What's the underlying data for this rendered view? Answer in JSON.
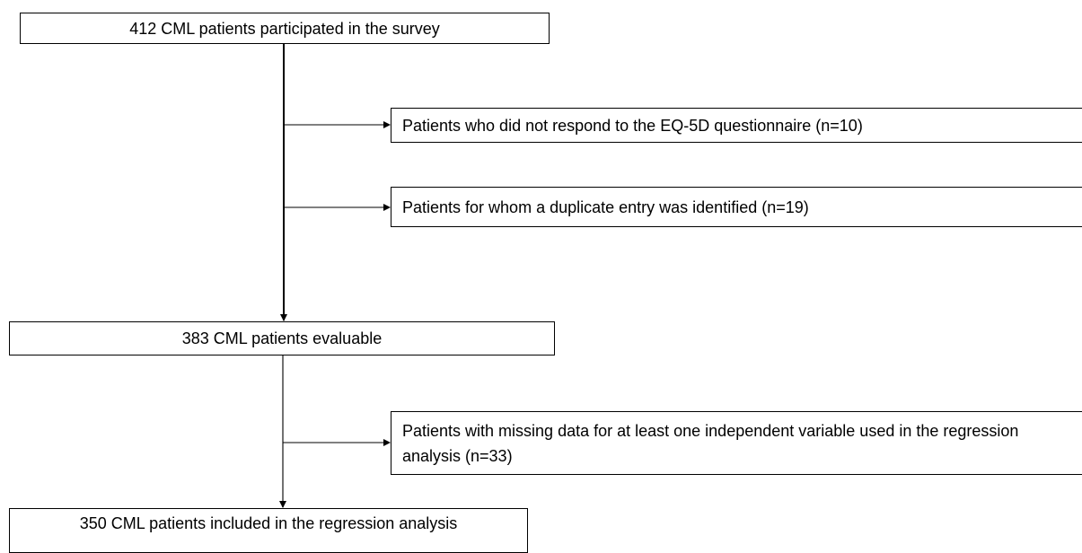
{
  "nodes": [
    {
      "label": "412 CML patients participated in the survey"
    },
    {
      "label": "Patients who did not respond to the EQ-5D questionnaire (n=10)"
    },
    {
      "label": "Patients for whom a duplicate entry was identified (n=19)"
    },
    {
      "label": "383 CML patients evaluable"
    },
    {
      "label": "Patients with missing data for at least one independent variable used in the regression analysis (n=33)"
    },
    {
      "label": "350 CML patients included in the regression analysis"
    }
  ]
}
